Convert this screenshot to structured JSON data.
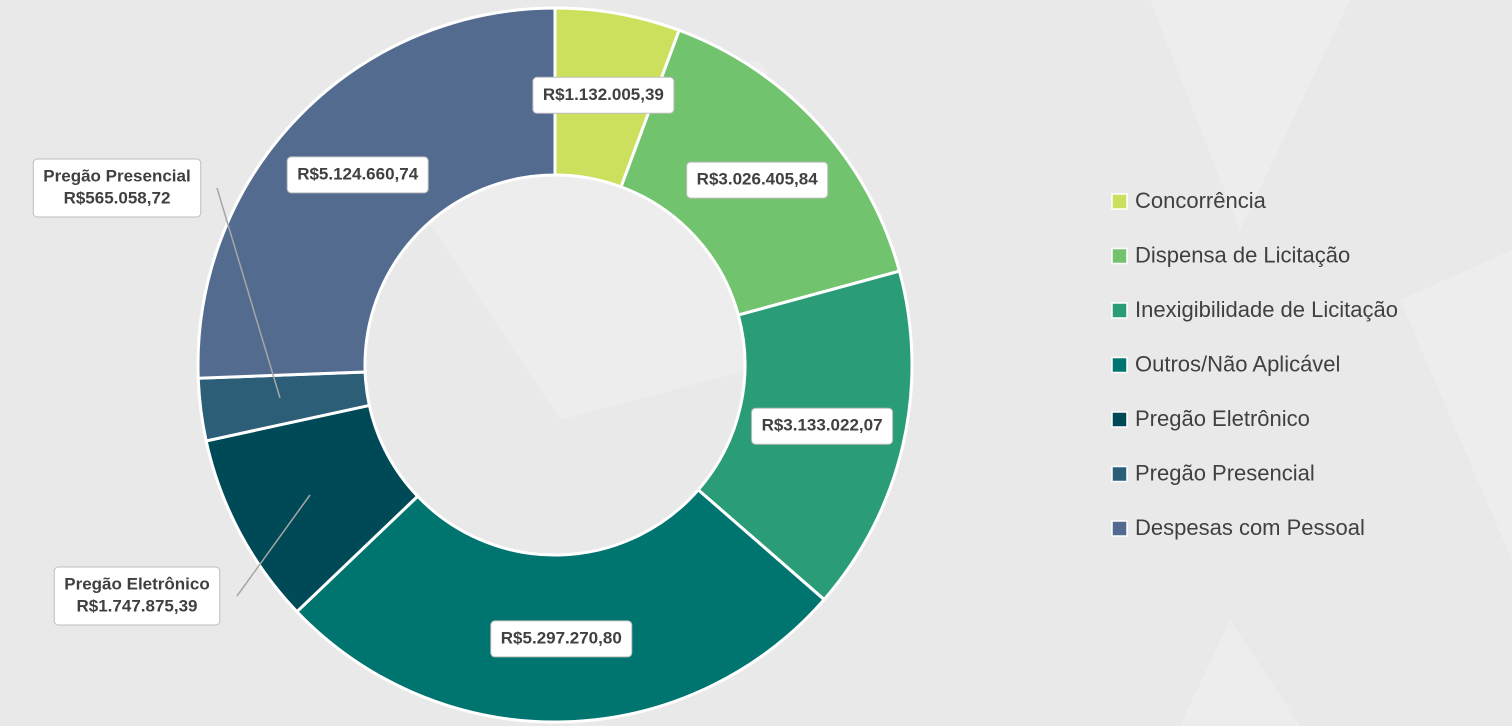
{
  "chart_data": {
    "type": "donut",
    "categories": [
      "Concorrência",
      "Dispensa de Licitação",
      "Inexigibilidade de Licitação",
      "Outros/Não Aplicável",
      "Pregão Eletrônico",
      "Pregão Presencial",
      "Despesas com Pessoal"
    ],
    "values": [
      1132005.39,
      3026405.84,
      3133022.07,
      5297270.8,
      1747875.39,
      565058.72,
      5124660.74
    ],
    "value_labels": [
      "R$1.132.005,39",
      "R$3.026.405,84",
      "R$3.133.022,07",
      "R$5.297.270,80",
      "R$1.747.875,39",
      "R$565.058,72",
      "R$5.124.660,74"
    ],
    "colors": [
      "#cde05e",
      "#72c36e",
      "#2a9d78",
      "#00746f",
      "#004a58",
      "#2c5e78",
      "#546b90"
    ],
    "legend": "right"
  }
}
